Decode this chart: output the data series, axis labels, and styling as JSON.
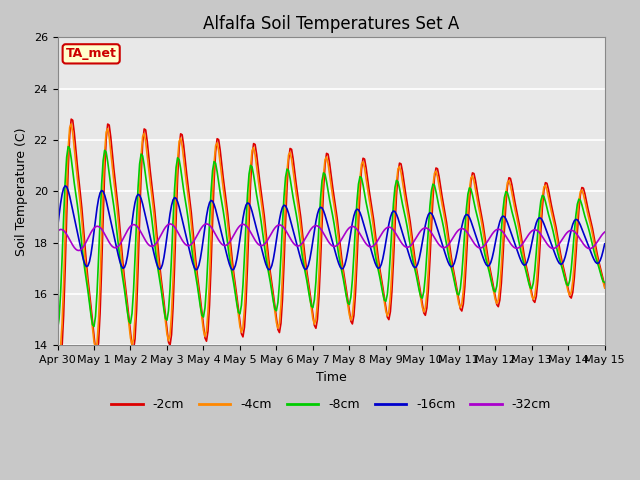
{
  "title": "Alfalfa Soil Temperatures Set A",
  "xlabel": "Time",
  "ylabel": "Soil Temperature (C)",
  "ylim": [
    14,
    26
  ],
  "yticks": [
    14,
    16,
    18,
    20,
    22,
    24,
    26
  ],
  "annotation": "TA_met",
  "annotation_color": "#cc0000",
  "annotation_bg": "#ffffcc",
  "annotation_border": "#cc0000",
  "series_colors": {
    "-2cm": "#dd0000",
    "-4cm": "#ff8800",
    "-8cm": "#00cc00",
    "-16cm": "#0000cc",
    "-32cm": "#aa00cc"
  },
  "title_fontsize": 12,
  "axis_fontsize": 9,
  "tick_fontsize": 8,
  "legend_fontsize": 9,
  "linewidth": 1.2,
  "fig_bg": "#c8c8c8",
  "plot_bg": "#e8e8e8"
}
